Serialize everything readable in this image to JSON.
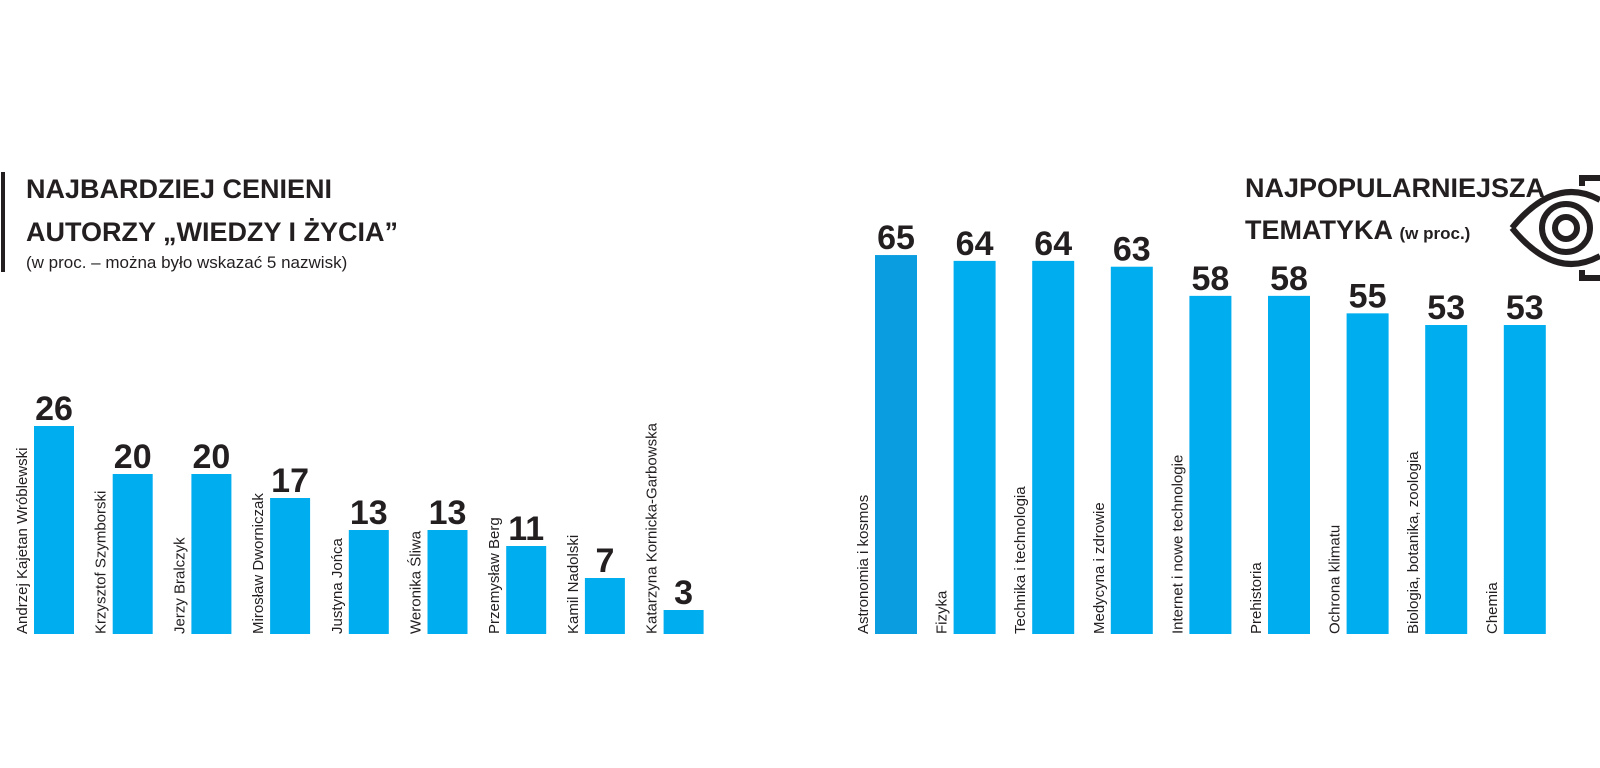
{
  "chart_data": [
    {
      "type": "bar",
      "title_lines": [
        "NAJBARDZIEJ CENIENI",
        "AUTORZY „WIEDZY I ŻYCIA”"
      ],
      "subtitle": "(w proc. – można było wskazać 5 nazwisk)",
      "categories": [
        "Andrzej Kajetan Wróblewski",
        "Krzysztof Szymborski",
        "Jerzy Bralczyk",
        "Mirosław Dworniczak",
        "Justyna Jońca",
        "Weronika Śliwa",
        "Przemysław Berg",
        "Kamil Nadolski",
        "Katarzyna Kornicka-Garbowska"
      ],
      "values": [
        26,
        20,
        20,
        17,
        13,
        13,
        11,
        7,
        3
      ],
      "colors": [
        "#00aeef",
        "#00aeef",
        "#00aeef",
        "#00aeef",
        "#00aeef",
        "#00aeef",
        "#00aeef",
        "#00aeef",
        "#00aeef"
      ]
    },
    {
      "type": "bar",
      "title_lines": [
        "NAJPOPULARNIEJSZA",
        "TEMATYKA"
      ],
      "subtitle": "(w proc.)",
      "categories": [
        "Astronomia i kosmos",
        "Fizyka",
        "Technika i technologia",
        "Medycyna i zdrowie",
        "Internet i nowe technologie",
        "Prehistoria",
        "Ochrona klimatu",
        "Biologia, botanika, zoologia",
        "Chemia"
      ],
      "values": [
        65,
        64,
        64,
        63,
        58,
        58,
        55,
        53,
        53
      ],
      "colors": [
        "#0a9ee0",
        "#00aeef",
        "#00aeef",
        "#00aeef",
        "#00aeef",
        "#00aeef",
        "#00aeef",
        "#00aeef",
        "#00aeef"
      ]
    }
  ]
}
